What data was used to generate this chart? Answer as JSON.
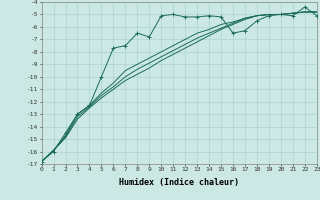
{
  "xlabel": "Humidex (Indice chaleur)",
  "bg_color": "#cce8e4",
  "line_color": "#1a6b5a",
  "grid_color": "#aad4cc",
  "x_min": 0,
  "x_max": 23,
  "y_min": -17,
  "y_max": -4,
  "humidex_x": [
    0,
    1,
    2,
    3,
    4,
    5,
    6,
    7,
    8,
    9,
    10,
    11,
    12,
    13,
    14,
    15,
    16,
    17,
    18,
    19,
    20,
    21,
    22,
    23
  ],
  "line1_y": [
    -16.8,
    -16.0,
    -14.5,
    -13.0,
    -12.3,
    -10.0,
    -7.7,
    -7.5,
    -6.5,
    -6.8,
    -5.1,
    -5.0,
    -5.2,
    -5.2,
    -5.1,
    -5.2,
    -6.5,
    -6.3,
    -5.5,
    -5.1,
    -5.0,
    -5.1,
    -4.4,
    -5.1
  ],
  "line2_y": [
    -16.8,
    -15.9,
    -14.7,
    -13.0,
    -12.3,
    -11.3,
    -10.5,
    -9.5,
    -9.0,
    -8.5,
    -8.0,
    -7.5,
    -7.0,
    -6.5,
    -6.2,
    -5.8,
    -5.6,
    -5.3,
    -5.1,
    -5.0,
    -5.0,
    -4.9,
    -4.8,
    -4.8
  ],
  "line3_y": [
    -16.8,
    -15.9,
    -14.8,
    -13.2,
    -12.4,
    -11.5,
    -10.8,
    -10.0,
    -9.4,
    -8.9,
    -8.4,
    -7.9,
    -7.4,
    -6.9,
    -6.5,
    -6.1,
    -5.7,
    -5.3,
    -5.1,
    -5.0,
    -5.0,
    -4.9,
    -4.8,
    -4.8
  ],
  "line4_y": [
    -16.8,
    -15.9,
    -14.9,
    -13.4,
    -12.5,
    -11.7,
    -11.0,
    -10.3,
    -9.8,
    -9.3,
    -8.7,
    -8.2,
    -7.7,
    -7.2,
    -6.7,
    -6.2,
    -5.8,
    -5.4,
    -5.1,
    -5.0,
    -5.0,
    -4.9,
    -4.8,
    -4.8
  ]
}
